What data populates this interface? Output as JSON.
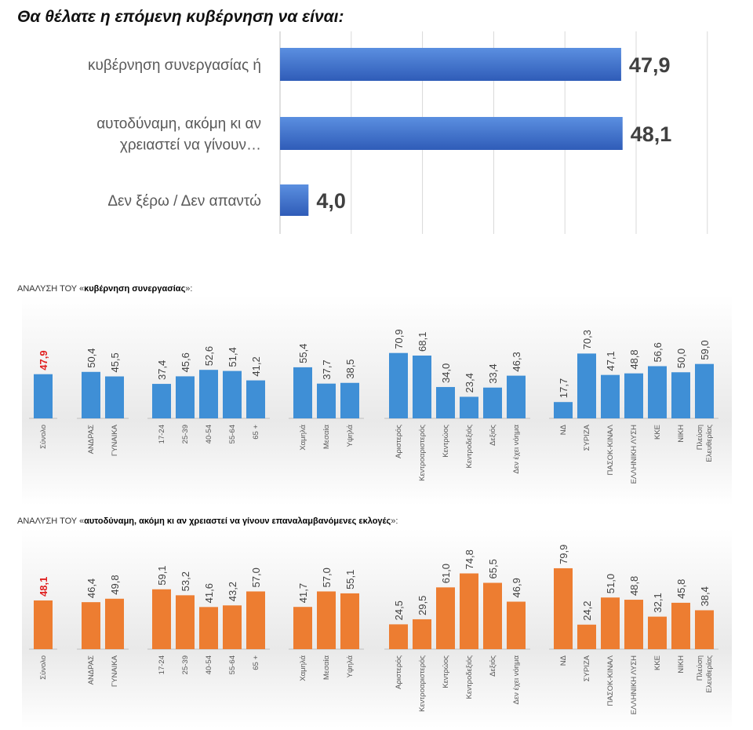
{
  "title": "Θα θέλατε η επόμενη κυβέρνηση να είναι:",
  "chart_data": [
    {
      "type": "bar",
      "orientation": "horizontal",
      "title": "Θα θέλατε η επόμενη κυβέρνηση να είναι:",
      "categories": [
        [
          "κυβέρνηση συνεργασίας ή"
        ],
        [
          "αυτοδύναμη, ακόμη κι αν",
          "χρειαστεί να γίνουν…"
        ],
        [
          "Δεν ξέρω / Δεν απαντώ"
        ]
      ],
      "values": [
        47.9,
        48.1,
        4.0
      ],
      "value_labels": [
        "47,9",
        "48,1",
        "4,0"
      ],
      "xlim": [
        0,
        60
      ],
      "grid": true,
      "color": "#4472c4"
    },
    {
      "type": "bar",
      "heading_prefix": "ΑΝΑΛΥΣΗ ΤΟΥ «",
      "heading_bold": "κυβέρνηση συνεργασίας",
      "heading_suffix": "»:",
      "color": "#3f8fd6",
      "highlight_color": "#e02020",
      "ylim": [
        0,
        80
      ],
      "groups": [
        {
          "categories": [
            [
              "Σύνολο"
            ]
          ],
          "values": [
            47.9
          ],
          "labels": [
            "47,9"
          ]
        },
        {
          "categories": [
            [
              "ΑΝΔΡΑΣ"
            ],
            [
              "ΓΥΝΑΙΚΑ"
            ]
          ],
          "values": [
            50.4,
            45.5
          ],
          "labels": [
            "50,4",
            "45,5"
          ]
        },
        {
          "categories": [
            [
              "17-24"
            ],
            [
              "25-39"
            ],
            [
              "40-54"
            ],
            [
              "55-64"
            ],
            [
              "65 +"
            ]
          ],
          "values": [
            37.4,
            45.6,
            52.6,
            51.4,
            41.2
          ],
          "labels": [
            "37,4",
            "45,6",
            "52,6",
            "51,4",
            "41,2"
          ]
        },
        {
          "categories": [
            [
              "Χαμηλά"
            ],
            [
              "Μεσαία"
            ],
            [
              "Υψηλά"
            ]
          ],
          "values": [
            55.4,
            37.7,
            38.5
          ],
          "labels": [
            "55,4",
            "37,7",
            "38,5"
          ]
        },
        {
          "categories": [
            [
              "Αριστερός"
            ],
            [
              "Κεντροαριστερός"
            ],
            [
              "Κεντρώος"
            ],
            [
              "Κεντροδεξιός"
            ],
            [
              "Δεξιός"
            ],
            [
              "Δεν έχει νόημα"
            ]
          ],
          "values": [
            70.9,
            68.1,
            34.0,
            23.4,
            33.4,
            46.3
          ],
          "labels": [
            "70,9",
            "68,1",
            "34,0",
            "23,4",
            "33,4",
            "46,3"
          ]
        },
        {
          "categories": [
            [
              "ΝΔ"
            ],
            [
              "ΣΥΡΙΖΑ"
            ],
            [
              "ΠΑΣΟΚ-ΚΙΝΑΛ"
            ],
            [
              "ΕΛΛΗΝΙΚΗ ΛΥΣΗ"
            ],
            [
              "ΚΚΕ"
            ],
            [
              "ΝΙΚΗ"
            ],
            [
              "Πλεύση",
              "Ελευθερίας"
            ]
          ],
          "values": [
            17.7,
            70.3,
            47.1,
            48.8,
            56.6,
            50.0,
            59.0
          ],
          "labels": [
            "17,7",
            "70,3",
            "47,1",
            "48,8",
            "56,6",
            "50,0",
            "59,0"
          ]
        }
      ]
    },
    {
      "type": "bar",
      "heading_prefix": "ΑΝΑΛΥΣΗ ΤΟΥ «",
      "heading_bold": "αυτοδύναμη, ακόμη κι αν χρειαστεί να γίνουν επαναλαμβανόμενες εκλογές",
      "heading_suffix": "»:",
      "color": "#ed7d31",
      "highlight_color": "#e02020",
      "ylim": [
        0,
        85
      ],
      "groups": [
        {
          "categories": [
            [
              "Σύνολο"
            ]
          ],
          "values": [
            48.1
          ],
          "labels": [
            "48,1"
          ]
        },
        {
          "categories": [
            [
              "ΑΝΔΡΑΣ"
            ],
            [
              "ΓΥΝΑΙΚΑ"
            ]
          ],
          "values": [
            46.4,
            49.8
          ],
          "labels": [
            "46,4",
            "49,8"
          ]
        },
        {
          "categories": [
            [
              "17-24"
            ],
            [
              "25-39"
            ],
            [
              "40-54"
            ],
            [
              "55-64"
            ],
            [
              "65 +"
            ]
          ],
          "values": [
            59.1,
            53.2,
            41.6,
            43.2,
            57.0
          ],
          "labels": [
            "59,1",
            "53,2",
            "41,6",
            "43,2",
            "57,0"
          ]
        },
        {
          "categories": [
            [
              "Χαμηλά"
            ],
            [
              "Μεσαία"
            ],
            [
              "Υψηλά"
            ]
          ],
          "values": [
            41.7,
            57.0,
            55.1
          ],
          "labels": [
            "41,7",
            "57,0",
            "55,1"
          ]
        },
        {
          "categories": [
            [
              "Αριστερός"
            ],
            [
              "Κεντροαριστερός"
            ],
            [
              "Κεντρώος"
            ],
            [
              "Κεντροδεξιός"
            ],
            [
              "Δεξιός"
            ],
            [
              "Δεν έχει νόημα"
            ]
          ],
          "values": [
            24.5,
            29.5,
            61.0,
            74.8,
            65.5,
            46.9
          ],
          "labels": [
            "24,5",
            "29,5",
            "61,0",
            "74,8",
            "65,5",
            "46,9"
          ]
        },
        {
          "categories": [
            [
              "ΝΔ"
            ],
            [
              "ΣΥΡΙΖΑ"
            ],
            [
              "ΠΑΣΟΚ-ΚΙΝΑΛ"
            ],
            [
              "ΕΛΛΗΝΙΚΗ ΛΥΣΗ"
            ],
            [
              "ΚΚΕ"
            ],
            [
              "ΝΙΚΗ"
            ],
            [
              "Πλεύση",
              "Ελευθερίας"
            ]
          ],
          "values": [
            79.9,
            24.2,
            51.0,
            48.8,
            32.1,
            45.8,
            38.4
          ],
          "labels": [
            "79,9",
            "24,2",
            "51,0",
            "48,8",
            "32,1",
            "45,8",
            "38,4"
          ]
        }
      ]
    }
  ]
}
